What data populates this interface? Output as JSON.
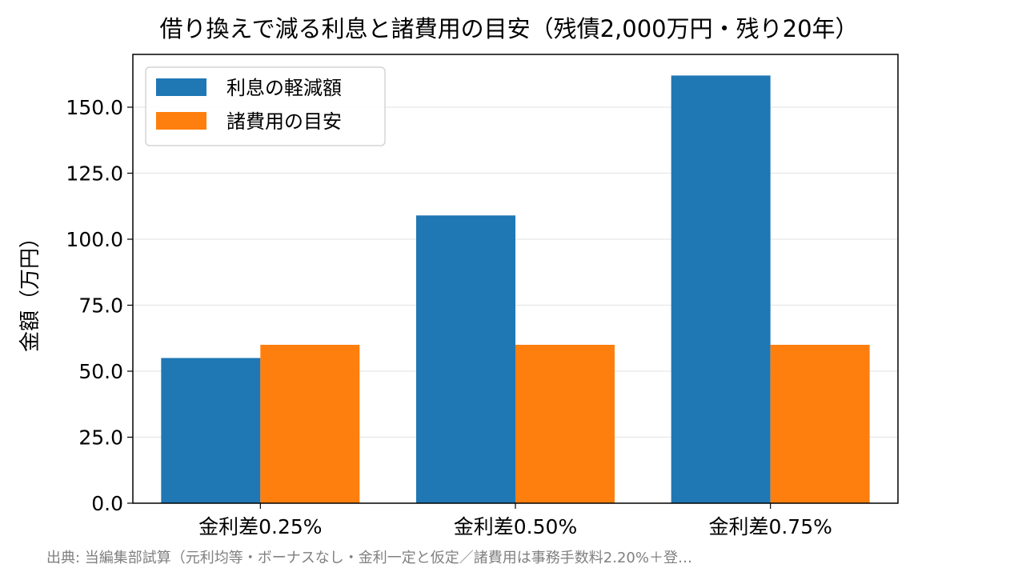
{
  "chart_data": {
    "type": "bar",
    "title": "借り換えで減る利息と諸費用の目安（残債2,000万円・残り20年）",
    "xlabel": "",
    "ylabel": "金額（万円）",
    "categories": [
      "金利差0.25%",
      "金利差0.50%",
      "金利差0.75%"
    ],
    "series": [
      {
        "name": "利息の軽減額",
        "values": [
          55,
          109,
          162
        ],
        "color": "#1f77b4"
      },
      {
        "name": "諸費用の目安",
        "values": [
          60,
          60,
          60
        ],
        "color": "#ff7f0e"
      }
    ],
    "ylim": [
      0,
      170
    ],
    "yticks": [
      0,
      25,
      50,
      75,
      100,
      125,
      150
    ],
    "ytick_labels": [
      "0.0",
      "25.0",
      "50.0",
      "75.0",
      "100.0",
      "125.0",
      "150.0"
    ],
    "grid": "horizontal",
    "legend_position": "top-left",
    "source_note": "出典: 当編集部試算（元利均等・ボーナスなし・金利一定と仮定／諸費用は事務手数料2.20%＋登…"
  }
}
